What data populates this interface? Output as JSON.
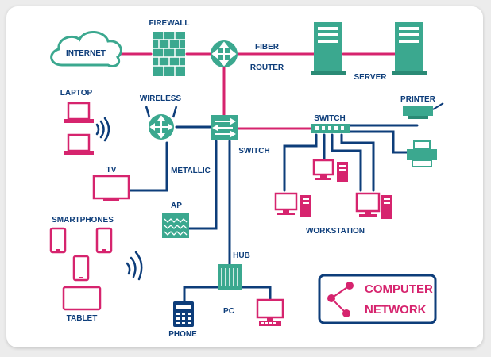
{
  "colors": {
    "navy": "#0d3d7a",
    "teal": "#3ba88f",
    "tealDark": "#2a8a75",
    "pink": "#d6246e"
  },
  "labels": {
    "internet": "INTERNET",
    "firewall": "FIREWALL",
    "fiber": "FIBER",
    "router": "ROUTER",
    "server": "SERVER",
    "laptop": "LAPTOP",
    "wireless": "WIRELESS",
    "switch_main": "SWITCH",
    "switch_top": "SWITCH",
    "printer": "PRINTER",
    "tv": "TV",
    "metallic": "METALLIC",
    "ap": "AP",
    "workstation": "WORKSTATION",
    "smartphones": "SMARTPHONES",
    "hub": "HUB",
    "pc": "PC",
    "phone": "PHONE",
    "tablet": "TABLET"
  },
  "title": {
    "line1": "COMPUTER",
    "line2": "NETWORK"
  }
}
